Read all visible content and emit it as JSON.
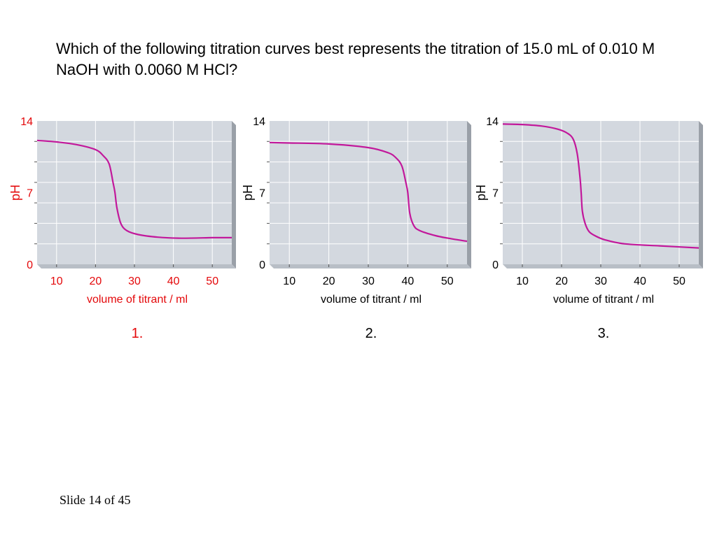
{
  "question": "Which of the following titration curves best represents the titration of 15.0 mL of 0.010 M NaOH with 0.0060 M HCl?",
  "footer": "Slide 14 of 45",
  "colors": {
    "highlight": "#e4080a",
    "curve": "#c2189b",
    "plot_bg": "#d3d8df",
    "grid": "#ffffff",
    "shadow": "#9aa0a8",
    "text": "#000000"
  },
  "chart_data": [
    {
      "type": "line",
      "option_label": "1.",
      "highlighted": true,
      "xlabel": "volume of titrant / ml",
      "ylabel": "pH",
      "xticks": [
        10,
        20,
        30,
        40,
        50
      ],
      "yticks": [
        0,
        7,
        14
      ],
      "xlim": [
        5,
        55
      ],
      "ylim": [
        0,
        14
      ],
      "grid": true,
      "series": [
        {
          "x": [
            5,
            10,
            15,
            20,
            22,
            23.5,
            24.5,
            25,
            25.5,
            26.5,
            28,
            31,
            36,
            42,
            50,
            55
          ],
          "y": [
            12.1,
            11.95,
            11.7,
            11.2,
            10.6,
            9.8,
            8.0,
            7.0,
            5.5,
            4.0,
            3.3,
            2.9,
            2.65,
            2.55,
            2.6,
            2.6
          ]
        }
      ]
    },
    {
      "type": "line",
      "option_label": "2.",
      "highlighted": false,
      "xlabel": "volume of titrant / ml",
      "ylabel": "pH",
      "xticks": [
        10,
        20,
        30,
        40,
        50
      ],
      "yticks": [
        0,
        7,
        14
      ],
      "xlim": [
        5,
        55
      ],
      "ylim": [
        0,
        14
      ],
      "grid": true,
      "series": [
        {
          "x": [
            5,
            10,
            20,
            30,
            35,
            37,
            38.5,
            39.5,
            40,
            40.5,
            41.5,
            43,
            47,
            51,
            55
          ],
          "y": [
            11.9,
            11.85,
            11.75,
            11.4,
            10.9,
            10.4,
            9.6,
            8.0,
            7.0,
            5.0,
            3.8,
            3.3,
            2.8,
            2.5,
            2.25
          ]
        }
      ]
    },
    {
      "type": "line",
      "option_label": "3.",
      "highlighted": false,
      "xlabel": "volume of titrant / ml",
      "ylabel": "pH",
      "xticks": [
        10,
        20,
        30,
        40,
        50
      ],
      "yticks": [
        0,
        7,
        14
      ],
      "xlim": [
        5,
        55
      ],
      "ylim": [
        0,
        14
      ],
      "grid": true,
      "series": [
        {
          "x": [
            5,
            10,
            15,
            19,
            21.5,
            23,
            24,
            24.7,
            25,
            25.3,
            26,
            27,
            28.5,
            31,
            36,
            45,
            55
          ],
          "y": [
            13.7,
            13.65,
            13.5,
            13.2,
            12.8,
            12.2,
            10.8,
            8.5,
            7.0,
            5.2,
            4.0,
            3.2,
            2.8,
            2.4,
            2.0,
            1.8,
            1.6
          ]
        }
      ]
    }
  ]
}
